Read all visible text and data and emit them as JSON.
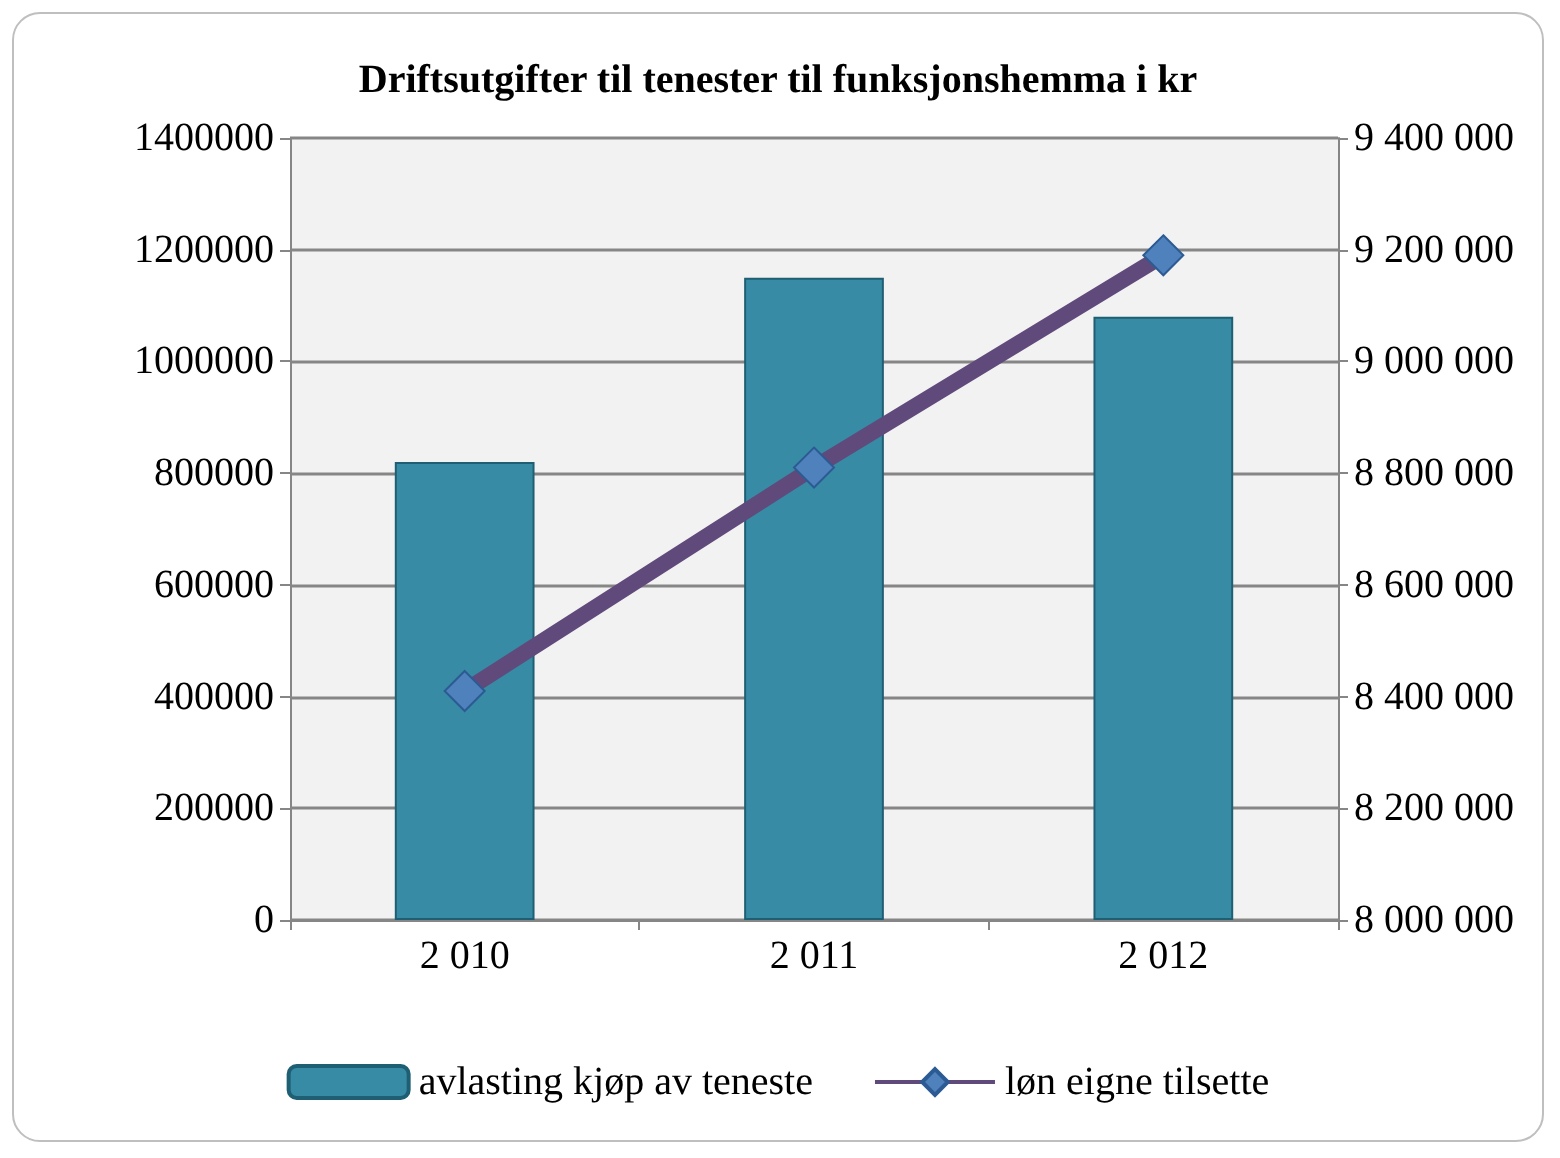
{
  "chart_data": {
    "type": "bar",
    "title": "Driftsutgifter til tenester til funksjonshemma i kr",
    "categories": [
      "2 010",
      "2 011",
      "2 012"
    ],
    "series": [
      {
        "name": "avlasting kjøp av teneste",
        "color": "#388ba5",
        "values": [
          820000,
          1150000,
          1080000
        ]
      },
      {
        "name": "løn eigne tilsette",
        "type": "line",
        "axis": "y2",
        "color": "#604a7b",
        "marker": "diamond",
        "values": [
          8410000,
          8810000,
          9190000
        ]
      }
    ],
    "ylim": [
      0,
      1400000
    ],
    "yticks": [
      0,
      200000,
      400000,
      600000,
      800000,
      1000000,
      1200000,
      1400000
    ],
    "y2lim": [
      8000000,
      9400000
    ],
    "y2ticks": [
      {
        "value": 8000000,
        "label": "8 000 000"
      },
      {
        "value": 8200000,
        "label": "8 200 000"
      },
      {
        "value": 8400000,
        "label": "8 400 000"
      },
      {
        "value": 8600000,
        "label": "8 600 000"
      },
      {
        "value": 8800000,
        "label": "8 800 000"
      },
      {
        "value": 9000000,
        "label": "9 000 000"
      },
      {
        "value": 9200000,
        "label": "9 200 000"
      },
      {
        "value": 9400000,
        "label": "9 400 000"
      }
    ],
    "grid": "y",
    "legend": "bottom"
  }
}
